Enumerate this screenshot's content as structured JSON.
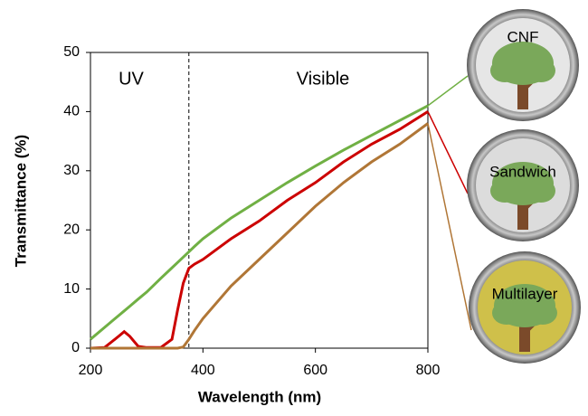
{
  "chart_data": {
    "type": "line",
    "x_label": "Wavelength (nm)",
    "y_label": "Transmittance (%)",
    "annotations": [
      "UV",
      "Visible"
    ],
    "boundary": 375,
    "x": [
      200,
      225,
      250,
      260,
      270,
      285,
      300,
      325,
      345,
      355,
      365,
      375,
      385,
      400,
      450,
      500,
      550,
      600,
      650,
      700,
      750,
      800
    ],
    "series": [
      {
        "name": "CNF",
        "color": "#70b044",
        "values": [
          1.5,
          3.5,
          5.5,
          6.3,
          7.1,
          8.3,
          9.5,
          11.8,
          13.6,
          14.5,
          15.4,
          16.3,
          17.2,
          18.5,
          22,
          25,
          28,
          30.8,
          33.5,
          36,
          38.5,
          41
        ]
      },
      {
        "name": "Sandwich",
        "color": "#cc0000",
        "values": [
          0,
          0.1,
          2,
          2.8,
          2,
          0.3,
          0.1,
          0.1,
          1.5,
          6.5,
          11,
          13.5,
          14.2,
          15,
          18.5,
          21.5,
          25,
          28,
          31.5,
          34.5,
          37,
          40
        ]
      },
      {
        "name": "Multilayer",
        "color": "#b07636",
        "values": [
          0,
          0,
          0,
          0,
          0,
          0,
          0,
          0,
          0,
          0,
          0.2,
          1.5,
          3,
          5,
          10.5,
          15,
          19.5,
          24,
          28,
          31.5,
          34.5,
          38
        ]
      }
    ],
    "xlim": [
      200,
      800
    ],
    "ylim": [
      0,
      50
    ],
    "xticks": [
      200,
      400,
      600,
      800
    ],
    "yticks": [
      0,
      10,
      20,
      30,
      40,
      50
    ]
  }
}
